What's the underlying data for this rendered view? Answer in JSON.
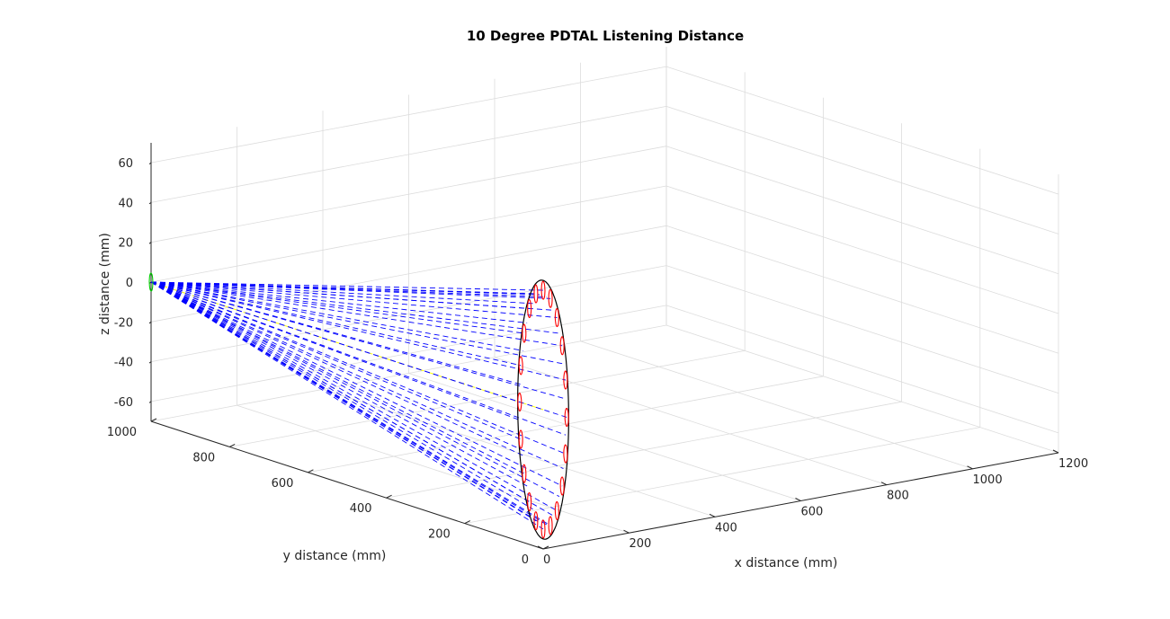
{
  "chart_data": {
    "type": "3d-line",
    "title": "10 Degree PDTAL Listening Distance",
    "xlabel": "x distance (mm)",
    "ylabel": "y distance (mm)",
    "zlabel": "z distance (mm)",
    "xlim": [
      0,
      1200
    ],
    "ylim": [
      0,
      1000
    ],
    "zlim": [
      -70,
      70
    ],
    "xticks": [
      "0",
      "200",
      "400",
      "600",
      "800",
      "1000",
      "1200"
    ],
    "yticks": [
      "0",
      "200",
      "400",
      "600",
      "800",
      "1000"
    ],
    "zticks": [
      "-60",
      "-40",
      "-20",
      "0",
      "20",
      "40",
      "60"
    ],
    "grid": true,
    "colors": {
      "rays": "#0000ff",
      "transducers": "#ff0000",
      "aperture": "#000000",
      "focus": "#00cc00",
      "axis_line": "#ffff00",
      "grid": "#dcdcdc",
      "axes": "#262626"
    }
  }
}
